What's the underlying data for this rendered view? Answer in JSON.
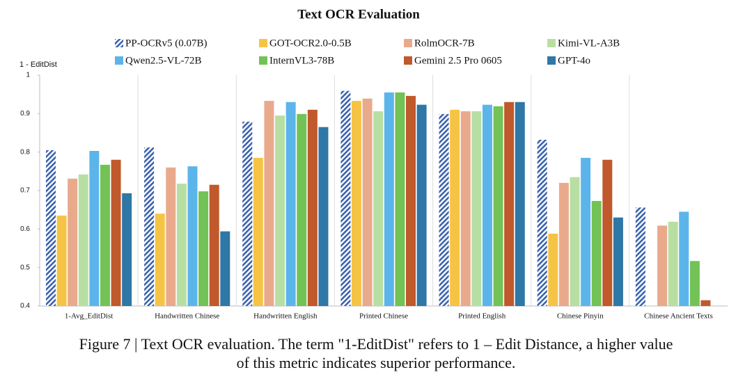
{
  "chart_data": {
    "type": "bar",
    "title": "Text OCR Evaluation",
    "ylabel": "1 - EditDist",
    "caption": [
      "Figure 7 | Text OCR evaluation. The term \"1-EditDist\" refers to 1 – Edit Distance, a higher value",
      "of this metric indicates superior performance."
    ],
    "categories": [
      "1-Avg_EditDist",
      "Handwritten Chinese",
      "Handwritten English",
      "Printed Chinese",
      "Printed English",
      "Chinese Pinyin",
      "Chinese Ancient Texts"
    ],
    "series": [
      {
        "name": "PP-OCRv5 (0.07B)",
        "color": "#3b62ad",
        "hatch": true,
        "values": [
          0.805,
          0.812,
          0.879,
          0.959,
          0.899,
          0.832,
          0.656
        ]
      },
      {
        "name": "GOT-OCR2.0-0.5B",
        "color": "#f6c445",
        "values": [
          0.635,
          0.64,
          0.785,
          0.933,
          0.91,
          0.588,
          null
        ]
      },
      {
        "name": "RolmOCR-7B",
        "color": "#e9aa8c",
        "values": [
          0.731,
          0.76,
          0.933,
          0.939,
          0.906,
          0.72,
          0.609
        ]
      },
      {
        "name": "Kimi-VL-A3B",
        "color": "#b8dfa3",
        "values": [
          0.742,
          0.718,
          0.895,
          0.906,
          0.906,
          0.735,
          0.619
        ]
      },
      {
        "name": "Qwen2.5-VL-72B",
        "color": "#5cb5ea",
        "values": [
          0.803,
          0.763,
          0.93,
          0.955,
          0.923,
          0.785,
          0.645
        ]
      },
      {
        "name": "InternVL3-78B",
        "color": "#73c255",
        "values": [
          0.767,
          0.698,
          0.899,
          0.955,
          0.919,
          0.673,
          0.517
        ]
      },
      {
        "name": "Gemini 2.5 Pro 0605",
        "color": "#c0592b",
        "values": [
          0.78,
          0.715,
          0.91,
          0.946,
          0.93,
          0.78,
          0.415
        ]
      },
      {
        "name": "GPT-4o",
        "color": "#2e77a6",
        "values": [
          0.693,
          0.594,
          0.865,
          0.923,
          0.93,
          0.63,
          null
        ]
      }
    ],
    "ylim": [
      0.4,
      1
    ],
    "yticks": [
      0.4,
      0.5,
      0.6,
      0.7,
      0.8,
      0.9,
      1
    ],
    "grid": false
  }
}
